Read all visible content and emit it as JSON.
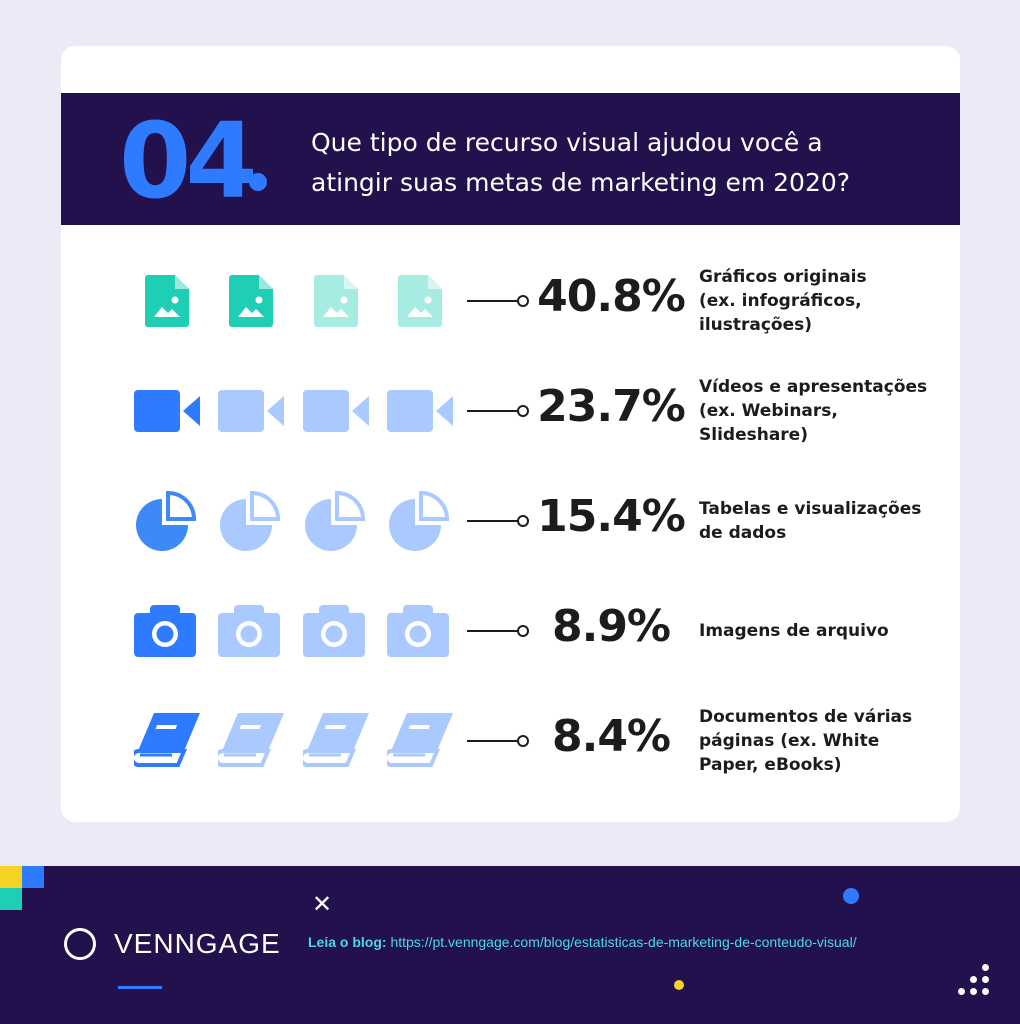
{
  "header": {
    "number": "04",
    "question_line1": "Que tipo de recurso visual ajudou você a",
    "question_line2": "atingir suas metas de marketing em 2020?"
  },
  "chart_data": {
    "type": "bar",
    "categories": [
      "Gráficos originais (ex. infográficos, ilustrações)",
      "Vídeos e apresentações (ex. Webinars, Slideshare)",
      "Tabelas e visualizações de dados",
      "Imagens de arquivo",
      "Documentos de várias páginas (ex. White Paper, eBooks)"
    ],
    "values": [
      40.8,
      23.7,
      15.4,
      8.9,
      8.4
    ],
    "title": "Que tipo de recurso visual ajudou você a atingir suas metas de marketing em 2020?"
  },
  "rows": [
    {
      "pct": "40.8%",
      "line1": "Gráficos originais",
      "line2": "(ex. infográficos,",
      "line3": "ilustrações)",
      "icon": "image-file-icon",
      "color": "#1fcfb5",
      "light": "#a6ece3"
    },
    {
      "pct": "23.7%",
      "line1": "Vídeos e apresentações",
      "line2": "(ex. Webinars,",
      "line3": "Slideshare)",
      "icon": "video-camera-icon",
      "color": "#2e7bff",
      "light": "#a9c9ff"
    },
    {
      "pct": "15.4%",
      "line1": "Tabelas e visualizações",
      "line2": "de dados",
      "line3": "",
      "icon": "pie-chart-icon",
      "color": "#3d8af7",
      "light": "#a9c9ff"
    },
    {
      "pct": "8.9%",
      "line1": "Imagens de arquivo",
      "line2": "",
      "line3": "",
      "icon": "camera-icon",
      "color": "#2e7bff",
      "light": "#a9c9ff"
    },
    {
      "pct": "8.4%",
      "line1": "Documentos de várias",
      "line2": "páginas (ex. White",
      "line3": "Paper, eBooks)",
      "icon": "book-icon",
      "color": "#2e7bff",
      "light": "#a9c9ff"
    }
  ],
  "footer": {
    "brand": "VENNGAGE",
    "blog_label": "Leia o blog:",
    "blog_url": "https://pt.venngage.com/blog/estatisticas-de-marketing-de-conteudo-visual/",
    "close_symbol": "✕"
  },
  "colors": {
    "navy": "#22114d",
    "blue": "#2e7bff",
    "teal": "#1fcfb5",
    "cyan_text": "#4fd6e6",
    "yellow": "#f5d327"
  }
}
